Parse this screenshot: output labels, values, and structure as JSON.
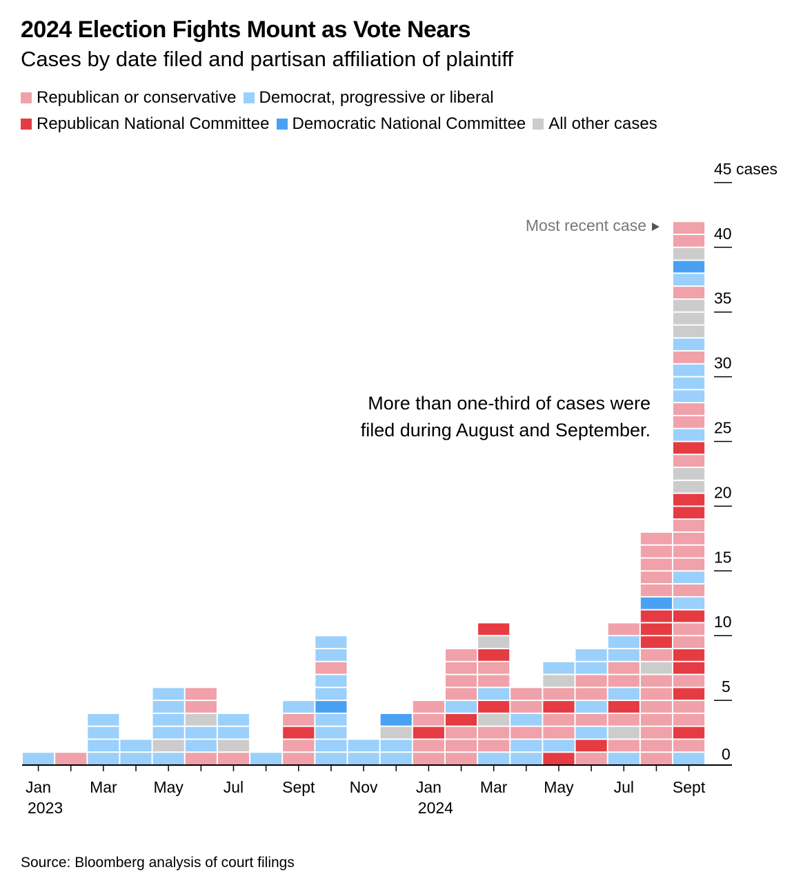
{
  "title": "2024 Election Fights Mount as Vote Nears",
  "subtitle": "Cases by date filed and partisan affiliation of plaintiff",
  "source": "Source: Bloomberg analysis of court filings",
  "legend": [
    {
      "key": "rep",
      "label": "Republican or conservative",
      "color": "#f0a1a9"
    },
    {
      "key": "dem",
      "label": "Democrat, progressive or liberal",
      "color": "#9ad0fb"
    },
    {
      "key": "rnc",
      "label": "Republican National Committee",
      "color": "#e63b43"
    },
    {
      "key": "dnc",
      "label": "Democratic National Committee",
      "color": "#4aa1f3"
    },
    {
      "key": "oth",
      "label": "All other cases",
      "color": "#cccccc"
    }
  ],
  "annotations": {
    "recent": "Most recent case",
    "note_line1": "More than one-third of cases were",
    "note_line2": "filed during August and September."
  },
  "chart_data": {
    "type": "bar",
    "stacked": "unit",
    "ylabel": "",
    "ylim": [
      0,
      45
    ],
    "y_ticks": [
      0,
      5,
      10,
      15,
      20,
      25,
      30,
      35,
      40,
      45
    ],
    "y_tick_labels": [
      "0",
      "5",
      "10",
      "15",
      "20",
      "25",
      "30",
      "35",
      "40",
      "45 cases"
    ],
    "x_tick_labels": [
      {
        "month": "Jan 2023",
        "label": "Jan",
        "sub": "2023"
      },
      {
        "month": "Mar 2023",
        "label": "Mar"
      },
      {
        "month": "May 2023",
        "label": "May"
      },
      {
        "month": "Jul 2023",
        "label": "Jul"
      },
      {
        "month": "Sept 2023",
        "label": "Sept"
      },
      {
        "month": "Nov 2023",
        "label": "Nov"
      },
      {
        "month": "Jan 2024",
        "label": "Jan",
        "sub": "2024"
      },
      {
        "month": "Mar 2024",
        "label": "Mar"
      },
      {
        "month": "May 2024",
        "label": "May"
      },
      {
        "month": "Jul 2024",
        "label": "Jul"
      },
      {
        "month": "Sept 2024",
        "label": "Sept"
      }
    ],
    "categories": [
      "Jan 2023",
      "Feb 2023",
      "Mar 2023",
      "Apr 2023",
      "May 2023",
      "Jun 2023",
      "Jul 2023",
      "Aug 2023",
      "Sept 2023",
      "Oct 2023",
      "Nov 2023",
      "Dec 2023",
      "Jan 2024",
      "Feb 2024",
      "Mar 2024",
      "Apr 2024",
      "May 2024",
      "Jun 2024",
      "Jul 2024",
      "Aug 2024",
      "Sept 2024"
    ],
    "cases_bottom_to_top": [
      [
        "dem"
      ],
      [
        "rep"
      ],
      [
        "dem",
        "dem",
        "dem",
        "dem"
      ],
      [
        "dem",
        "dem"
      ],
      [
        "dem",
        "oth",
        "dem",
        "dem",
        "dem",
        "dem"
      ],
      [
        "rep",
        "dem",
        "dem",
        "oth",
        "rep",
        "rep"
      ],
      [
        "rep",
        "oth",
        "dem",
        "dem"
      ],
      [
        "dem"
      ],
      [
        "rep",
        "rep",
        "rnc",
        "rep",
        "dem"
      ],
      [
        "dem",
        "dem",
        "dem",
        "dem",
        "dnc",
        "dem",
        "dem",
        "rep",
        "dem",
        "dem"
      ],
      [
        "dem",
        "dem"
      ],
      [
        "dem",
        "dem",
        "oth",
        "dnc"
      ],
      [
        "rep",
        "rep",
        "rnc",
        "rep",
        "rep"
      ],
      [
        "rep",
        "rep",
        "rep",
        "rnc",
        "dem",
        "rep",
        "rep",
        "rep",
        "rep"
      ],
      [
        "dem",
        "rep",
        "rep",
        "oth",
        "rnc",
        "dem",
        "rep",
        "rep",
        "rnc",
        "oth",
        "rnc"
      ],
      [
        "dem",
        "dem",
        "rep",
        "dem",
        "rep",
        "rep"
      ],
      [
        "rnc",
        "dem",
        "rep",
        "rep",
        "rnc",
        "rep",
        "oth",
        "dem"
      ],
      [
        "rep",
        "rnc",
        "dem",
        "rep",
        "dem",
        "rep",
        "rep",
        "dem",
        "dem"
      ],
      [
        "dem",
        "rep",
        "oth",
        "rep",
        "rnc",
        "dem",
        "rep",
        "rep",
        "dem",
        "dem",
        "rep"
      ],
      [
        "rep",
        "rep",
        "rep",
        "rep",
        "rep",
        "rep",
        "rep",
        "oth",
        "rep",
        "rnc",
        "rnc",
        "rnc",
        "dnc",
        "rep",
        "rep",
        "rep",
        "rep",
        "rep"
      ],
      [
        "dem",
        "rep",
        "rnc",
        "rep",
        "rep",
        "rnc",
        "rep",
        "rnc",
        "rnc",
        "rep",
        "rep",
        "rnc",
        "dem",
        "rep",
        "dem",
        "rep",
        "rep",
        "rep",
        "rep",
        "rnc",
        "rnc",
        "oth",
        "oth",
        "rep",
        "rnc",
        "dem",
        "rep",
        "rep",
        "dem",
        "dem",
        "dem",
        "rep",
        "dem",
        "oth",
        "oth",
        "oth",
        "rep",
        "dem",
        "dnc",
        "oth",
        "rep",
        "rep"
      ]
    ]
  }
}
